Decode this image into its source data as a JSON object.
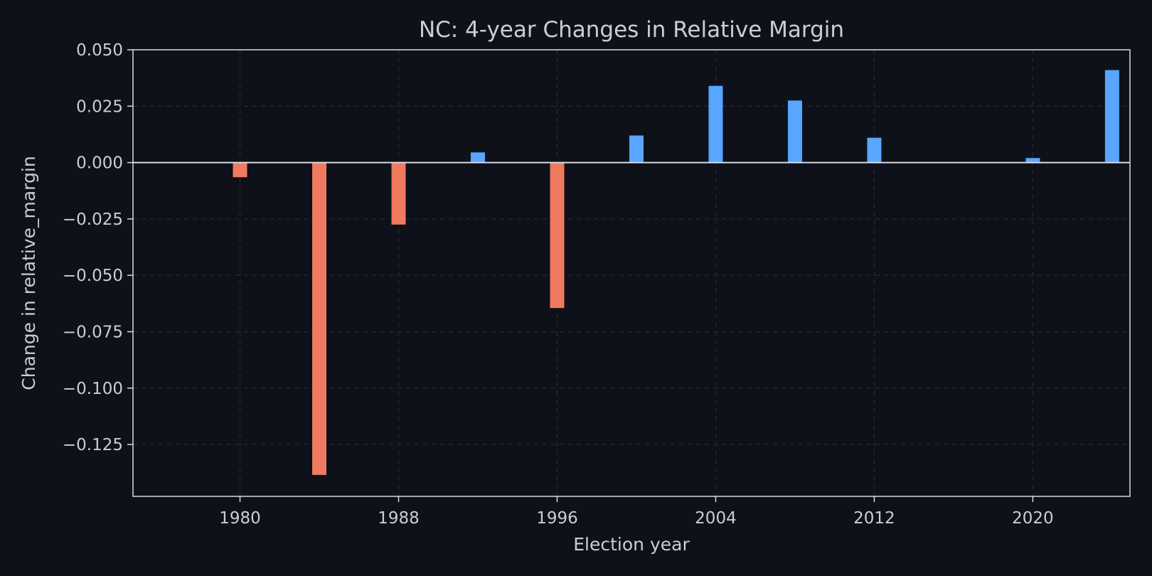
{
  "chart_data": {
    "type": "bar",
    "title": "NC: 4-year Changes in Relative Margin",
    "xlabel": "Election year",
    "ylabel": "Change in relative_margin",
    "x": [
      1980,
      1984,
      1988,
      1992,
      1996,
      2000,
      2004,
      2008,
      2012,
      2016,
      2020,
      2024
    ],
    "values": [
      -0.0065,
      -0.1385,
      -0.0275,
      0.0045,
      -0.0645,
      0.012,
      0.034,
      0.0275,
      0.011,
      0.0,
      0.002,
      0.041
    ],
    "xlim": [
      1974.6,
      2024.9
    ],
    "ylim": [
      -0.148,
      0.05
    ],
    "xticks": [
      1980,
      1988,
      1996,
      2004,
      2012,
      2020
    ],
    "xtick_labels": [
      "1980",
      "1988",
      "1996",
      "2004",
      "2012",
      "2020"
    ],
    "yticks": [
      0.05,
      0.025,
      0.0,
      -0.025,
      -0.05,
      -0.075,
      -0.1,
      -0.125
    ],
    "ytick_labels": [
      "0.050",
      "0.025",
      "0.000",
      "−0.025",
      "−0.050",
      "−0.075",
      "−0.100",
      "−0.125"
    ],
    "grid": true,
    "colors": {
      "positive": "#58a6ff",
      "negative": "#f07a5f",
      "background": "#0e111a",
      "axes": "#d7dbe0",
      "grid": "#2a2f38",
      "text": "#c9ced6"
    }
  }
}
